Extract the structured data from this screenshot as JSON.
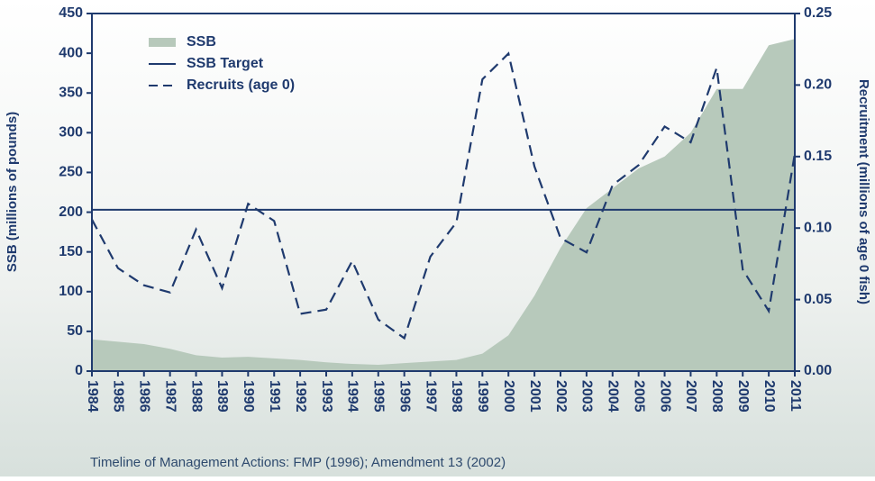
{
  "chart_data": {
    "type": "combo",
    "x": [
      1984,
      1985,
      1986,
      1987,
      1988,
      1989,
      1990,
      1991,
      1992,
      1993,
      1994,
      1995,
      1996,
      1997,
      1998,
      1999,
      2000,
      2001,
      2002,
      2003,
      2004,
      2005,
      2006,
      2007,
      2008,
      2009,
      2010,
      2011
    ],
    "xlim": [
      1984,
      2011
    ],
    "xticks": [
      1984,
      1985,
      1986,
      1987,
      1988,
      1989,
      1990,
      1991,
      1992,
      1993,
      1994,
      1995,
      1996,
      1997,
      1998,
      1999,
      2000,
      2001,
      2002,
      2003,
      2004,
      2005,
      2006,
      2007,
      2008,
      2009,
      2010,
      2011
    ],
    "ylim": [
      0,
      450
    ],
    "yticks": [
      0,
      50,
      100,
      150,
      200,
      250,
      300,
      350,
      400,
      450
    ],
    "y2lim": [
      0,
      0.25
    ],
    "y2ticks": [
      {
        "value": 0,
        "label": "0.00"
      },
      0.05,
      {
        "value": 0.1,
        "label": "0.10"
      },
      0.15,
      {
        "value": 0.2,
        "label": "0.20"
      },
      0.25
    ],
    "y_label": "SSB (millions of pounds)",
    "y2_label": "Recruitment (millions of age 0 fish)",
    "footnote": "Timeline of Management Actions: FMP (1996); Amendment 13 (2002)",
    "legend": "upper left",
    "series": [
      {
        "name": "SSB",
        "type": "area",
        "color": "#b7c9bb",
        "values": [
          40,
          37,
          34,
          28,
          20,
          17,
          18,
          16,
          14,
          11,
          9,
          8,
          10,
          12,
          14,
          22,
          45,
          95,
          155,
          205,
          230,
          255,
          270,
          300,
          355,
          355,
          410,
          418
        ]
      },
      {
        "name": "SSB Target",
        "type": "hline",
        "color": "#1f3a6e",
        "value": 203
      },
      {
        "name": "Recruits (age 0)",
        "type": "dashed-line",
        "color": "#1f3a6e",
        "axis": "y2",
        "values": [
          0.106,
          0.072,
          0.06,
          0.055,
          0.099,
          0.058,
          0.117,
          0.105,
          0.04,
          0.043,
          0.077,
          0.036,
          0.023,
          0.08,
          0.104,
          0.204,
          0.222,
          0.143,
          0.093,
          0.083,
          0.13,
          0.144,
          0.171,
          0.16,
          0.212,
          0.071,
          0.042,
          0.152
        ]
      }
    ]
  }
}
